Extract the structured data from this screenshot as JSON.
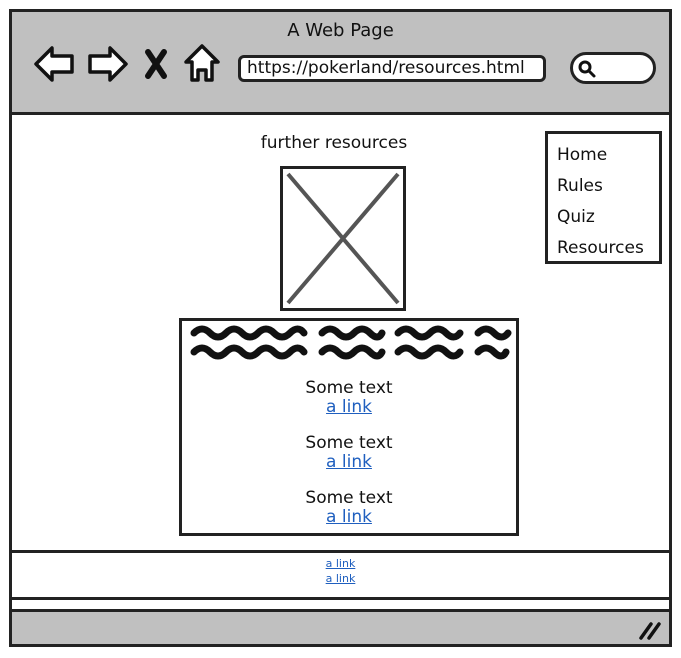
{
  "window": {
    "title": "A Web Page"
  },
  "toolbar": {
    "back_icon": "back-arrow-icon",
    "forward_icon": "forward-arrow-icon",
    "stop_icon": "close-x-icon",
    "home_icon": "home-icon",
    "url": "https://pokerland/resources.html",
    "search_icon": "search-icon"
  },
  "content": {
    "heading": "further resources",
    "image_icon": "image-placeholder-icon",
    "entries": [
      {
        "text": "Some text",
        "link": "a link"
      },
      {
        "text": "Some text",
        "link": "a link"
      },
      {
        "text": "Some text",
        "link": "a link"
      }
    ]
  },
  "menu": {
    "items": [
      {
        "label": "Home"
      },
      {
        "label": "Rules"
      },
      {
        "label": "Quiz"
      },
      {
        "label": "Resources"
      }
    ]
  },
  "footer": {
    "links": [
      {
        "label": "a link"
      },
      {
        "label": "a link"
      }
    ]
  },
  "colors": {
    "chrome": "#c0c0c0",
    "link": "#1f5fbf",
    "border": "#222222"
  }
}
